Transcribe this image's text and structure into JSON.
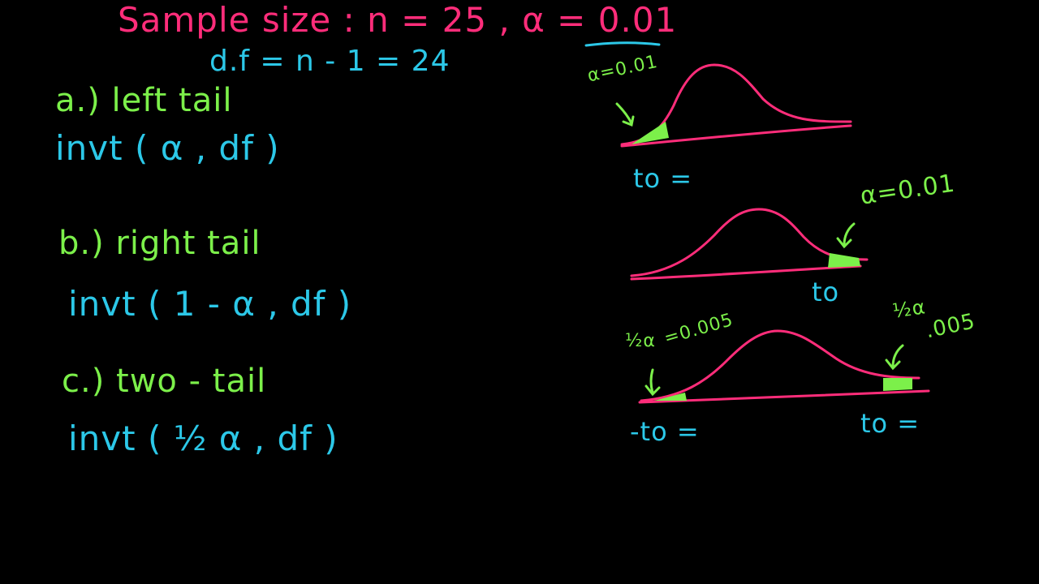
{
  "colors": {
    "background": "#000000",
    "pink": "#ff2d7a",
    "green": "#7cf04a",
    "cyan": "#2cc8e8"
  },
  "header": {
    "title": "Sample size : n = 25   ,   α = 0.01",
    "df": "d.f = n - 1 = 24"
  },
  "cases": {
    "left": {
      "label": "a.)  left tail",
      "formula": "invt ( α , df )"
    },
    "right": {
      "label": "b.)  right tail",
      "formula": "invt ( 1 - α , df )"
    },
    "two": {
      "label": "c.)  two - tail",
      "formula": "invt ( ½ α , df )"
    }
  },
  "graphs": {
    "left": {
      "alpha": "α=0.01",
      "t": "to ="
    },
    "right": {
      "alpha": "α=0.01",
      "t": "to"
    },
    "two": {
      "left_half": "½α",
      "left_alpha": "=0.005",
      "right_half": "½α",
      "right_alpha": ".005",
      "left_t": "-to =",
      "right_t": "to ="
    }
  }
}
